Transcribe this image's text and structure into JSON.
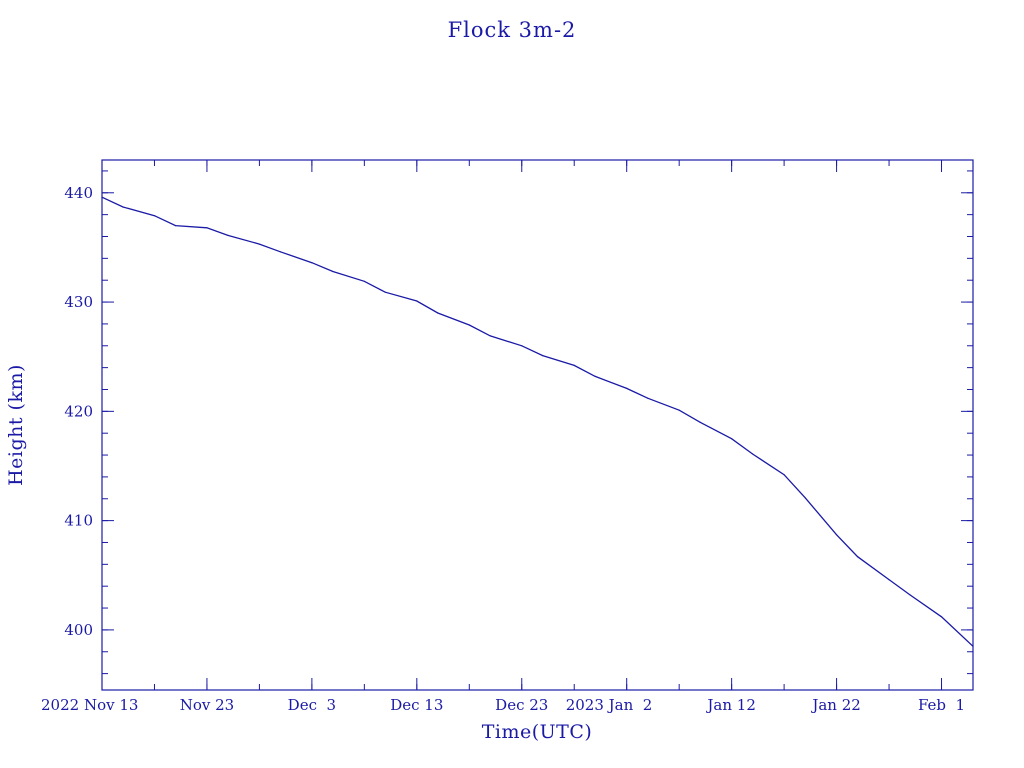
{
  "chart_data": {
    "type": "line",
    "title": "Flock 3m-2",
    "xlabel": "Time(UTC)",
    "ylabel": "Height (km)",
    "xlim": [
      "2022-11-13",
      "2023-02-04"
    ],
    "ylim": [
      394.5,
      443.0
    ],
    "x_ticks": [
      {
        "date": "2022-11-13",
        "label": "2022 Nov 13"
      },
      {
        "date": "2022-11-23",
        "label": "Nov 23"
      },
      {
        "date": "2022-12-03",
        "label": "Dec  3"
      },
      {
        "date": "2022-12-13",
        "label": "Dec 13"
      },
      {
        "date": "2022-12-23",
        "label": "Dec 23"
      },
      {
        "date": "2023-01-02",
        "label": "2023 Jan  2"
      },
      {
        "date": "2023-01-12",
        "label": "Jan 12"
      },
      {
        "date": "2023-01-22",
        "label": "Jan 22"
      },
      {
        "date": "2023-02-01",
        "label": "Feb  1"
      }
    ],
    "x_minor_tick_days": 5,
    "y_ticks": [
      400,
      410,
      420,
      430,
      440
    ],
    "y_minor_tick_step": 2,
    "grid": false,
    "series": [
      {
        "x": [
          "2022-11-13",
          "2022-11-15",
          "2022-11-18",
          "2022-11-20",
          "2022-11-23",
          "2022-11-25",
          "2022-11-28",
          "2022-11-30",
          "2022-12-03",
          "2022-12-05",
          "2022-12-08",
          "2022-12-10",
          "2022-12-13",
          "2022-12-15",
          "2022-12-18",
          "2022-12-20",
          "2022-12-23",
          "2022-12-25",
          "2022-12-28",
          "2022-12-30",
          "2023-01-02",
          "2023-01-04",
          "2023-01-07",
          "2023-01-09",
          "2023-01-12",
          "2023-01-14",
          "2023-01-17",
          "2023-01-19",
          "2023-01-22",
          "2023-01-24",
          "2023-01-27",
          "2023-01-29",
          "2023-02-01",
          "2023-02-04"
        ],
        "values": [
          439.6,
          438.7,
          437.9,
          437.0,
          436.8,
          436.1,
          435.3,
          434.6,
          433.6,
          432.8,
          431.9,
          430.9,
          430.1,
          429.0,
          427.9,
          426.9,
          426.0,
          425.1,
          424.2,
          423.2,
          422.1,
          421.2,
          420.1,
          419.0,
          417.5,
          416.1,
          414.2,
          412.1,
          408.7,
          406.7,
          404.6,
          403.2,
          401.2,
          398.5
        ]
      }
    ]
  }
}
